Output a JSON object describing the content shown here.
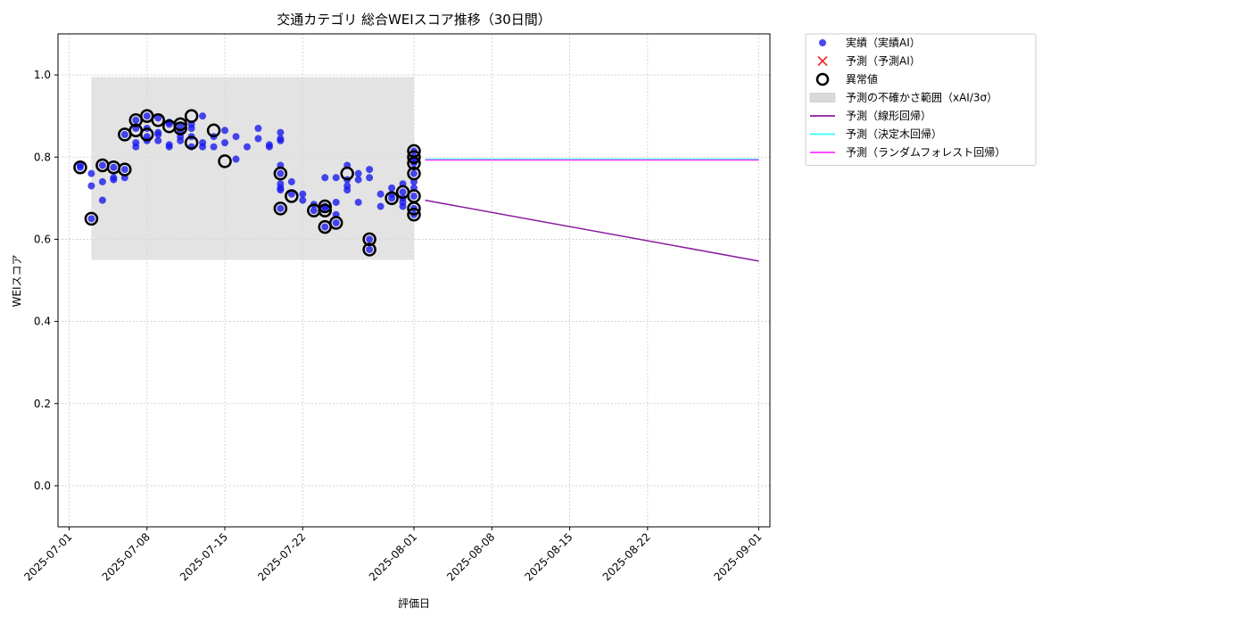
{
  "chart_data": {
    "type": "scatter",
    "title": "交通カテゴリ 総合WEIスコア推移（30日間）",
    "xlabel": "評価日",
    "ylabel": "WEIスコア",
    "ylim": [
      -0.1,
      1.1
    ],
    "xlim": [
      "2025-06-30",
      "2025-09-02"
    ],
    "grid": true,
    "legend_position": "outside-top-right",
    "x_ticks": [
      "2025-07-01",
      "2025-07-08",
      "2025-07-15",
      "2025-07-22",
      "2025-08-01",
      "2025-08-08",
      "2025-08-15",
      "2025-08-22",
      "2025-09-01"
    ],
    "y_ticks": [
      "0.0",
      "0.2",
      "0.4",
      "0.6",
      "0.8",
      "1.0"
    ],
    "legend": [
      {
        "label": "実績（実績AI）",
        "marker": "dot",
        "color": "#1a1aee"
      },
      {
        "label": "予測（予測AI）",
        "marker": "x",
        "color": "#ee3333"
      },
      {
        "label": "異常値",
        "marker": "ring",
        "color": "#000000"
      },
      {
        "label": "予測の不確かさ範囲（xAI/3σ）",
        "marker": "band",
        "color": "#d9d9d9"
      },
      {
        "label": "予測（線形回帰）",
        "marker": "line",
        "color": "#8b1a9e"
      },
      {
        "label": "予測（決定木回帰）",
        "marker": "line",
        "color": "#33ffff"
      },
      {
        "label": "予測（ランダムフォレスト回帰）",
        "marker": "line",
        "color": "#ff33ff"
      }
    ],
    "uncertainty_band": {
      "x": [
        "2025-07-03",
        "2025-08-01"
      ],
      "y": [
        0.55,
        0.995
      ]
    },
    "series": [
      {
        "name": "実績（実績AI）",
        "color": "#1a1aee",
        "points": [
          [
            "2025-07-02",
            0.775
          ],
          [
            "2025-07-02",
            0.78
          ],
          [
            "2025-07-03",
            0.73
          ],
          [
            "2025-07-03",
            0.65
          ],
          [
            "2025-07-03",
            0.76
          ],
          [
            "2025-07-04",
            0.78
          ],
          [
            "2025-07-04",
            0.74
          ],
          [
            "2025-07-04",
            0.695
          ],
          [
            "2025-07-05",
            0.75
          ],
          [
            "2025-07-05",
            0.775
          ],
          [
            "2025-07-05",
            0.745
          ],
          [
            "2025-07-06",
            0.77
          ],
          [
            "2025-07-06",
            0.75
          ],
          [
            "2025-07-06",
            0.855
          ],
          [
            "2025-07-07",
            0.835
          ],
          [
            "2025-07-07",
            0.825
          ],
          [
            "2025-07-07",
            0.87
          ],
          [
            "2025-07-07",
            0.89
          ],
          [
            "2025-07-08",
            0.84
          ],
          [
            "2025-07-08",
            0.85
          ],
          [
            "2025-07-08",
            0.87
          ],
          [
            "2025-07-08",
            0.9
          ],
          [
            "2025-07-09",
            0.855
          ],
          [
            "2025-07-09",
            0.86
          ],
          [
            "2025-07-09",
            0.84
          ],
          [
            "2025-07-09",
            0.895
          ],
          [
            "2025-07-10",
            0.885
          ],
          [
            "2025-07-10",
            0.825
          ],
          [
            "2025-07-10",
            0.83
          ],
          [
            "2025-07-10",
            0.88
          ],
          [
            "2025-07-11",
            0.85
          ],
          [
            "2025-07-11",
            0.875
          ],
          [
            "2025-07-11",
            0.86
          ],
          [
            "2025-07-11",
            0.84
          ],
          [
            "2025-07-12",
            0.825
          ],
          [
            "2025-07-12",
            0.85
          ],
          [
            "2025-07-12",
            0.87
          ],
          [
            "2025-07-12",
            0.88
          ],
          [
            "2025-07-13",
            0.825
          ],
          [
            "2025-07-13",
            0.835
          ],
          [
            "2025-07-13",
            0.9
          ],
          [
            "2025-07-14",
            0.85
          ],
          [
            "2025-07-14",
            0.825
          ],
          [
            "2025-07-15",
            0.835
          ],
          [
            "2025-07-15",
            0.865
          ],
          [
            "2025-07-16",
            0.85
          ],
          [
            "2025-07-16",
            0.795
          ],
          [
            "2025-07-17",
            0.825
          ],
          [
            "2025-07-18",
            0.87
          ],
          [
            "2025-07-18",
            0.845
          ],
          [
            "2025-07-19",
            0.825
          ],
          [
            "2025-07-19",
            0.83
          ],
          [
            "2025-07-20",
            0.845
          ],
          [
            "2025-07-20",
            0.84
          ],
          [
            "2025-07-20",
            0.86
          ],
          [
            "2025-07-20",
            0.78
          ],
          [
            "2025-07-20",
            0.76
          ],
          [
            "2025-07-20",
            0.735
          ],
          [
            "2025-07-20",
            0.725
          ],
          [
            "2025-07-20",
            0.72
          ],
          [
            "2025-07-20",
            0.675
          ],
          [
            "2025-07-21",
            0.74
          ],
          [
            "2025-07-21",
            0.71
          ],
          [
            "2025-07-22",
            0.71
          ],
          [
            "2025-07-22",
            0.695
          ],
          [
            "2025-07-23",
            0.67
          ],
          [
            "2025-07-23",
            0.685
          ],
          [
            "2025-07-24",
            0.68
          ],
          [
            "2025-07-24",
            0.63
          ],
          [
            "2025-07-24",
            0.675
          ],
          [
            "2025-07-24",
            0.75
          ],
          [
            "2025-07-25",
            0.64
          ],
          [
            "2025-07-25",
            0.66
          ],
          [
            "2025-07-25",
            0.69
          ],
          [
            "2025-07-25",
            0.75
          ],
          [
            "2025-07-26",
            0.78
          ],
          [
            "2025-07-26",
            0.73
          ],
          [
            "2025-07-26",
            0.745
          ],
          [
            "2025-07-26",
            0.72
          ],
          [
            "2025-07-27",
            0.76
          ],
          [
            "2025-07-27",
            0.69
          ],
          [
            "2025-07-27",
            0.745
          ],
          [
            "2025-07-28",
            0.77
          ],
          [
            "2025-07-28",
            0.75
          ],
          [
            "2025-07-28",
            0.6
          ],
          [
            "2025-07-28",
            0.575
          ],
          [
            "2025-07-29",
            0.71
          ],
          [
            "2025-07-29",
            0.68
          ],
          [
            "2025-07-30",
            0.7
          ],
          [
            "2025-07-30",
            0.725
          ],
          [
            "2025-07-30",
            0.71
          ],
          [
            "2025-07-31",
            0.735
          ],
          [
            "2025-07-31",
            0.7
          ],
          [
            "2025-07-31",
            0.68
          ],
          [
            "2025-07-31",
            0.69
          ],
          [
            "2025-07-31",
            0.715
          ],
          [
            "2025-08-01",
            0.66
          ],
          [
            "2025-08-01",
            0.675
          ],
          [
            "2025-08-01",
            0.705
          ],
          [
            "2025-08-01",
            0.725
          ],
          [
            "2025-08-01",
            0.74
          ],
          [
            "2025-08-01",
            0.76
          ],
          [
            "2025-08-01",
            0.785
          ],
          [
            "2025-08-01",
            0.8
          ],
          [
            "2025-08-01",
            0.815
          ],
          [
            "2025-08-01",
            0.79
          ]
        ]
      },
      {
        "name": "異常値",
        "color": "#000000",
        "points": [
          [
            "2025-07-02",
            0.775
          ],
          [
            "2025-07-03",
            0.65
          ],
          [
            "2025-07-04",
            0.78
          ],
          [
            "2025-07-05",
            0.775
          ],
          [
            "2025-07-06",
            0.77
          ],
          [
            "2025-07-06",
            0.855
          ],
          [
            "2025-07-07",
            0.865
          ],
          [
            "2025-07-07",
            0.89
          ],
          [
            "2025-07-08",
            0.9
          ],
          [
            "2025-07-08",
            0.855
          ],
          [
            "2025-07-09",
            0.89
          ],
          [
            "2025-07-10",
            0.875
          ],
          [
            "2025-07-11",
            0.87
          ],
          [
            "2025-07-11",
            0.88
          ],
          [
            "2025-07-12",
            0.835
          ],
          [
            "2025-07-12",
            0.9
          ],
          [
            "2025-07-14",
            0.865
          ],
          [
            "2025-07-15",
            0.79
          ],
          [
            "2025-07-20",
            0.76
          ],
          [
            "2025-07-20",
            0.675
          ],
          [
            "2025-07-21",
            0.705
          ],
          [
            "2025-07-23",
            0.67
          ],
          [
            "2025-07-24",
            0.68
          ],
          [
            "2025-07-24",
            0.67
          ],
          [
            "2025-07-24",
            0.63
          ],
          [
            "2025-07-25",
            0.64
          ],
          [
            "2025-07-26",
            0.76
          ],
          [
            "2025-07-28",
            0.6
          ],
          [
            "2025-07-28",
            0.575
          ],
          [
            "2025-07-30",
            0.7
          ],
          [
            "2025-07-31",
            0.715
          ],
          [
            "2025-08-01",
            0.76
          ],
          [
            "2025-08-01",
            0.705
          ],
          [
            "2025-08-01",
            0.675
          ],
          [
            "2025-08-01",
            0.66
          ],
          [
            "2025-08-01",
            0.815
          ],
          [
            "2025-08-01",
            0.8
          ],
          [
            "2025-08-01",
            0.785
          ]
        ]
      },
      {
        "name": "予測（線形回帰）",
        "color": "#8b1a9e",
        "line": [
          [
            "2025-08-02",
            0.695
          ],
          [
            "2025-09-01",
            0.547
          ]
        ]
      },
      {
        "name": "予測（決定木回帰）",
        "color": "#33ffff",
        "line": [
          [
            "2025-08-02",
            0.795
          ],
          [
            "2025-09-01",
            0.795
          ]
        ]
      },
      {
        "name": "予測（ランダムフォレスト回帰）",
        "color": "#ff33ff",
        "line": [
          [
            "2025-08-02",
            0.793
          ],
          [
            "2025-09-01",
            0.793
          ]
        ]
      }
    ]
  }
}
